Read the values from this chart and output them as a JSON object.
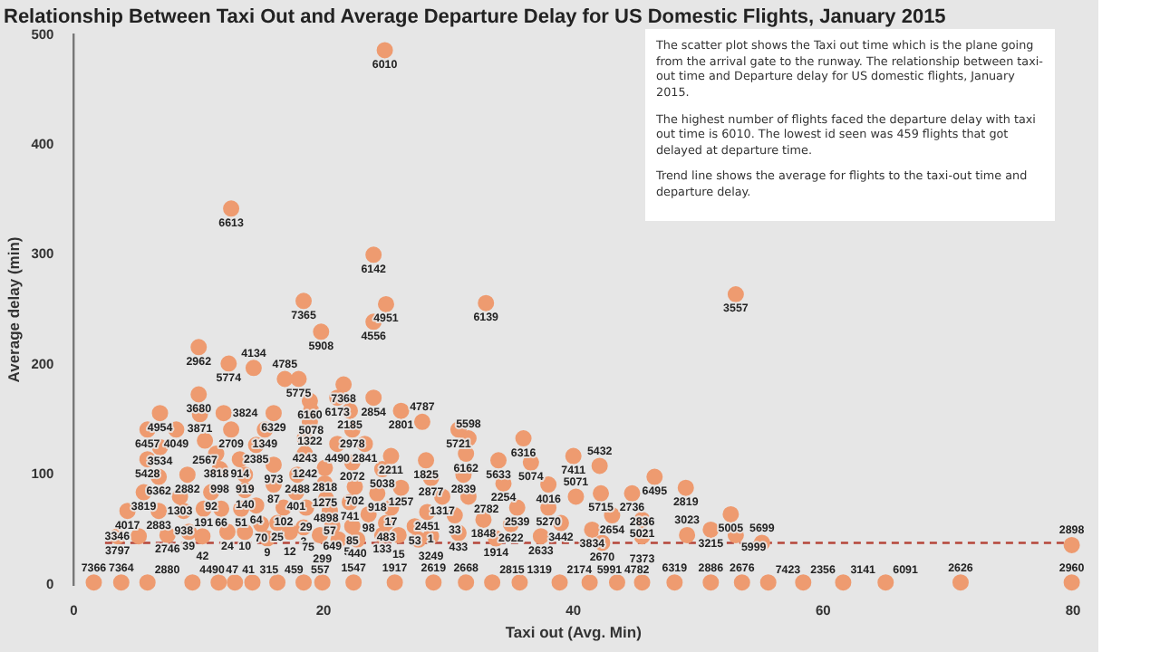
{
  "chart_data": {
    "type": "scatter",
    "title": "Relationship Between Taxi Out and Average Departure Delay for US Domestic Flights, January 2015",
    "xlabel": "Taxi out (Avg. Min)",
    "ylabel": "Average delay (min)",
    "xlim": [
      0,
      80
    ],
    "xticks": [
      0,
      20,
      40,
      60,
      80
    ],
    "ylim": [
      0,
      500
    ],
    "yticks": [
      0,
      100,
      200,
      300,
      400,
      500
    ],
    "annotations": [
      "The scatter plot shows the Taxi out time which is the plane going from the arrival gate to the runway. The relationship between taxi-out time and Departure delay for US domestic flights, January 2015.",
      "The highest number of flights faced the departure delay with taxi out time is 6010. The lowest id seen was 459 flights that got delayed at departure time.",
      "Trend line shows the average for flights to the taxi-out time and departure delay.",
      {
        "text": "6010",
        "x": 24.9,
        "y": 486
      },
      {
        "text": "6613",
        "x": 12.6,
        "y": 342
      },
      {
        "text": "6142",
        "x": 24.0,
        "y": 300
      },
      {
        "text": "7365",
        "x": 18.4,
        "y": 258
      },
      {
        "text": "4951",
        "x": 25.0,
        "y": 255
      },
      {
        "text": "4556",
        "x": 24.0,
        "y": 239
      },
      {
        "text": "5908",
        "x": 19.8,
        "y": 230
      },
      {
        "text": "6139",
        "x": 33.0,
        "y": 256
      },
      {
        "text": "3557",
        "x": 53.0,
        "y": 264
      },
      {
        "text": "2962",
        "x": 10.0,
        "y": 216
      },
      {
        "text": "5774",
        "x": 12.4,
        "y": 201
      },
      {
        "text": "4134",
        "x": 14.4,
        "y": 197
      },
      {
        "text": "5775",
        "x": 18.0,
        "y": 187
      },
      {
        "text": "4785",
        "x": 16.9,
        "y": 187
      },
      {
        "text": "7368",
        "x": 21.6,
        "y": 182
      },
      {
        "text": "6160",
        "x": 18.9,
        "y": 167
      },
      {
        "text": "6173",
        "x": 21.1,
        "y": 170
      },
      {
        "text": "3680",
        "x": 10.0,
        "y": 173
      },
      {
        "text": "5078",
        "x": 19.0,
        "y": 158
      },
      {
        "text": "2854",
        "x": 24.0,
        "y": 170
      },
      {
        "text": "5721",
        "x": 30.8,
        "y": 141
      },
      {
        "text": "4954",
        "x": 6.9,
        "y": 156
      },
      {
        "text": "3871",
        "x": 10.1,
        "y": 155
      },
      {
        "text": "3824",
        "x": 12.0,
        "y": 156
      },
      {
        "text": "6329",
        "x": 16.0,
        "y": 156
      },
      {
        "text": "2185",
        "x": 22.1,
        "y": 158
      },
      {
        "text": "6457",
        "x": 5.9,
        "y": 141
      },
      {
        "text": "4049",
        "x": 8.2,
        "y": 141
      },
      {
        "text": "2709",
        "x": 12.6,
        "y": 141
      },
      {
        "text": "1349",
        "x": 15.3,
        "y": 141
      },
      {
        "text": "1322",
        "x": 18.9,
        "y": 148
      },
      {
        "text": "2978",
        "x": 22.3,
        "y": 141
      },
      {
        "text": "2801",
        "x": 26.2,
        "y": 158
      },
      {
        "text": "4787",
        "x": 27.9,
        "y": 148
      },
      {
        "text": "5598",
        "x": 31.6,
        "y": 133
      },
      {
        "text": "6316",
        "x": 36.0,
        "y": 133
      },
      {
        "text": "3534",
        "x": 6.9,
        "y": 125
      },
      {
        "text": "2567",
        "x": 10.5,
        "y": 131
      },
      {
        "text": "2385",
        "x": 14.6,
        "y": 127
      },
      {
        "text": "4243",
        "x": 18.5,
        "y": 133
      },
      {
        "text": "4490",
        "x": 21.1,
        "y": 128
      },
      {
        "text": "2841",
        "x": 23.3,
        "y": 128
      },
      {
        "text": "3818",
        "x": 11.4,
        "y": 119
      },
      {
        "text": "1242",
        "x": 18.5,
        "y": 119
      },
      {
        "text": "6162",
        "x": 31.4,
        "y": 119
      },
      {
        "text": "7411",
        "x": 40.0,
        "y": 117
      },
      {
        "text": "2211",
        "x": 25.4,
        "y": 117
      },
      {
        "text": "5428",
        "x": 5.9,
        "y": 114
      },
      {
        "text": "914",
        "x": 13.3,
        "y": 114
      },
      {
        "text": "1825",
        "x": 28.2,
        "y": 113
      },
      {
        "text": "5633",
        "x": 34.0,
        "y": 113
      },
      {
        "text": "5074",
        "x": 36.6,
        "y": 111
      },
      {
        "text": "2072",
        "x": 22.3,
        "y": 111
      },
      {
        "text": "973",
        "x": 16.0,
        "y": 109
      },
      {
        "text": "5432",
        "x": 42.1,
        "y": 108
      },
      {
        "text": "2818",
        "x": 20.1,
        "y": 106
      },
      {
        "text": "998",
        "x": 11.7,
        "y": 105
      },
      {
        "text": "5038",
        "x": 24.7,
        "y": 105
      },
      {
        "text": "919",
        "x": 13.7,
        "y": 100
      },
      {
        "text": "2488",
        "x": 17.9,
        "y": 100
      },
      {
        "text": "2882",
        "x": 9.1,
        "y": 100
      },
      {
        "text": "2839",
        "x": 31.2,
        "y": 100
      },
      {
        "text": "6362",
        "x": 6.8,
        "y": 98
      },
      {
        "text": "6495",
        "x": 46.5,
        "y": 98
      },
      {
        "text": "2877",
        "x": 28.6,
        "y": 97
      },
      {
        "text": "1275",
        "x": 20.1,
        "y": 92
      },
      {
        "text": "2254",
        "x": 34.4,
        "y": 92
      },
      {
        "text": "87",
        "x": 16.0,
        "y": 91
      },
      {
        "text": "4016",
        "x": 38.0,
        "y": 91
      },
      {
        "text": "702",
        "x": 22.5,
        "y": 89
      },
      {
        "text": "1257",
        "x": 26.2,
        "y": 88
      },
      {
        "text": "2819",
        "x": 49.0,
        "y": 88
      },
      {
        "text": "140",
        "x": 13.7,
        "y": 86
      },
      {
        "text": "92",
        "x": 11.0,
        "y": 84
      },
      {
        "text": "401",
        "x": 17.8,
        "y": 84
      },
      {
        "text": "3819",
        "x": 5.6,
        "y": 84
      },
      {
        "text": "918",
        "x": 24.3,
        "y": 83
      },
      {
        "text": "5715",
        "x": 42.2,
        "y": 83
      },
      {
        "text": "2736",
        "x": 44.7,
        "y": 83
      },
      {
        "text": "1303",
        "x": 8.5,
        "y": 80
      },
      {
        "text": "1317",
        "x": 29.5,
        "y": 80
      },
      {
        "text": "2782",
        "x": 31.6,
        "y": 80
      },
      {
        "text": "5071",
        "x": 40.2,
        "y": 80
      },
      {
        "text": "4898",
        "x": 20.2,
        "y": 78
      },
      {
        "text": "741",
        "x": 22.1,
        "y": 75
      },
      {
        "text": "64",
        "x": 14.6,
        "y": 72
      },
      {
        "text": "102",
        "x": 16.8,
        "y": 70
      },
      {
        "text": "29",
        "x": 18.6,
        "y": 70
      },
      {
        "text": "17",
        "x": 25.4,
        "y": 70
      },
      {
        "text": "2539",
        "x": 35.5,
        "y": 70
      },
      {
        "text": "5270",
        "x": 38.0,
        "y": 70
      },
      {
        "text": "191",
        "x": 10.4,
        "y": 69
      },
      {
        "text": "66",
        "x": 11.8,
        "y": 69
      },
      {
        "text": "51",
        "x": 13.4,
        "y": 69
      },
      {
        "text": "4017",
        "x": 4.3,
        "y": 67
      },
      {
        "text": "2883",
        "x": 6.8,
        "y": 67
      },
      {
        "text": "938",
        "x": 8.8,
        "y": 67
      },
      {
        "text": "57",
        "x": 20.5,
        "y": 67
      },
      {
        "text": "2451",
        "x": 28.3,
        "y": 66
      },
      {
        "text": "98",
        "x": 23.6,
        "y": 64
      },
      {
        "text": "5005",
        "x": 52.6,
        "y": 64
      },
      {
        "text": "33",
        "x": 30.5,
        "y": 63
      },
      {
        "text": "2654",
        "x": 43.1,
        "y": 63
      },
      {
        "text": "1848",
        "x": 32.8,
        "y": 59
      },
      {
        "text": "5021",
        "x": 45.5,
        "y": 59
      },
      {
        "text": "483",
        "x": 25.0,
        "y": 56
      },
      {
        "text": "25",
        "x": 16.3,
        "y": 56
      },
      {
        "text": "3442",
        "x": 39.0,
        "y": 56
      },
      {
        "text": "70",
        "x": 15.0,
        "y": 55
      },
      {
        "text": "2622",
        "x": 35.0,
        "y": 55
      },
      {
        "text": "649",
        "x": 20.7,
        "y": 53
      },
      {
        "text": "85",
        "x": 22.3,
        "y": 53
      },
      {
        "text": "53",
        "x": 27.3,
        "y": 53
      },
      {
        "text": "3",
        "x": 18.4,
        "y": 52
      },
      {
        "text": "3834",
        "x": 41.5,
        "y": 50
      },
      {
        "text": "3215",
        "x": 51.0,
        "y": 50
      },
      {
        "text": "39",
        "x": 9.2,
        "y": 48
      },
      {
        "text": "24",
        "x": 12.3,
        "y": 48
      },
      {
        "text": "10",
        "x": 13.7,
        "y": 48
      },
      {
        "text": "12",
        "x": 17.3,
        "y": 48
      },
      {
        "text": "433",
        "x": 30.8,
        "y": 47
      },
      {
        "text": "2746",
        "x": 7.5,
        "y": 45
      },
      {
        "text": "75",
        "x": 19.7,
        "y": 45
      },
      {
        "text": "133",
        "x": 24.7,
        "y": 45
      },
      {
        "text": "15",
        "x": 26.0,
        "y": 45
      },
      {
        "text": "3023",
        "x": 49.1,
        "y": 45
      },
      {
        "text": "5999",
        "x": 53.0,
        "y": 45
      },
      {
        "text": "3797",
        "x": 3.5,
        "y": 44
      },
      {
        "text": "3346",
        "x": 5.2,
        "y": 44
      },
      {
        "text": "42",
        "x": 10.3,
        "y": 44
      },
      {
        "text": "3249",
        "x": 28.6,
        "y": 44
      },
      {
        "text": "2633",
        "x": 37.4,
        "y": 44
      },
      {
        "text": "2836",
        "x": 45.5,
        "y": 44
      },
      {
        "text": "9",
        "x": 15.5,
        "y": 42
      },
      {
        "text": "1914",
        "x": 33.8,
        "y": 42
      },
      {
        "text": "5",
        "x": 21.2,
        "y": 41
      },
      {
        "text": "440",
        "x": 22.7,
        "y": 41
      },
      {
        "text": "1",
        "x": 27.6,
        "y": 41
      },
      {
        "text": "2670",
        "x": 42.3,
        "y": 38
      },
      {
        "text": "5699",
        "x": 55.1,
        "y": 38
      },
      {
        "text": "2898",
        "x": 79.9,
        "y": 36
      },
      {
        "text": "7366",
        "x": 1.6,
        "y": 2
      },
      {
        "text": "7364",
        "x": 3.8,
        "y": 2
      },
      {
        "text": "2880",
        "x": 5.9,
        "y": 2
      },
      {
        "text": "4490",
        "x": 9.5,
        "y": 2
      },
      {
        "text": "47",
        "x": 11.6,
        "y": 2
      },
      {
        "text": "41",
        "x": 12.9,
        "y": 2
      },
      {
        "text": "315",
        "x": 14.3,
        "y": 2
      },
      {
        "text": "459",
        "x": 16.3,
        "y": 2
      },
      {
        "text": "557",
        "x": 18.4,
        "y": 2
      },
      {
        "text": "299",
        "x": 19.9,
        "y": 2
      },
      {
        "text": "1547",
        "x": 22.4,
        "y": 2
      },
      {
        "text": "1917",
        "x": 25.7,
        "y": 2
      },
      {
        "text": "2619",
        "x": 28.8,
        "y": 2
      },
      {
        "text": "2668",
        "x": 31.4,
        "y": 2
      },
      {
        "text": "2815",
        "x": 33.5,
        "y": 2
      },
      {
        "text": "1319",
        "x": 35.7,
        "y": 2
      },
      {
        "text": "2174",
        "x": 38.9,
        "y": 2
      },
      {
        "text": "5991",
        "x": 41.3,
        "y": 2
      },
      {
        "text": "4782",
        "x": 43.5,
        "y": 2
      },
      {
        "text": "7373",
        "x": 45.5,
        "y": 2
      },
      {
        "text": "6319",
        "x": 48.1,
        "y": 2
      },
      {
        "text": "2886",
        "x": 51.0,
        "y": 2
      },
      {
        "text": "2676",
        "x": 53.5,
        "y": 2
      },
      {
        "text": "7423",
        "x": 55.6,
        "y": 2
      },
      {
        "text": "2356",
        "x": 58.4,
        "y": 2
      },
      {
        "text": "3141",
        "x": 61.6,
        "y": 2
      },
      {
        "text": "6091",
        "x": 65.0,
        "y": 2
      },
      {
        "text": "2626",
        "x": 71.0,
        "y": 2
      },
      {
        "text": "2960",
        "x": 79.9,
        "y": 2
      }
    ],
    "series": [
      {
        "type": "scatter",
        "color": "#ee9b70",
        "marker": "circle",
        "x": [
          24.9,
          12.6,
          24.0,
          18.4,
          25.0,
          24.0,
          19.8,
          33.0,
          53.0,
          10.0,
          12.4,
          14.4,
          18.0,
          16.9,
          21.6,
          18.9,
          21.1,
          10.0,
          19.0,
          24.0,
          30.8,
          6.9,
          10.1,
          12.0,
          16.0,
          22.1,
          5.9,
          8.2,
          12.6,
          15.3,
          18.9,
          22.3,
          26.2,
          27.9,
          31.6,
          36.0,
          6.9,
          10.5,
          14.6,
          18.5,
          21.1,
          23.3,
          11.4,
          18.5,
          31.4,
          40.0,
          25.4,
          5.9,
          13.3,
          28.2,
          34.0,
          36.6,
          22.3,
          16.0,
          42.1,
          20.1,
          11.7,
          24.7,
          13.7,
          17.9,
          9.1,
          31.2,
          6.8,
          46.5,
          28.6,
          20.1,
          34.4,
          16.0,
          38.0,
          22.5,
          26.2,
          49.0,
          13.7,
          11.0,
          17.8,
          5.6,
          24.3,
          42.2,
          44.7,
          8.5,
          29.5,
          31.6,
          40.2,
          20.2,
          22.1,
          14.6,
          16.8,
          18.6,
          25.4,
          35.5,
          38.0,
          10.4,
          11.8,
          13.4,
          4.3,
          6.8,
          8.8,
          20.5,
          28.3,
          23.6,
          52.6,
          30.5,
          43.1,
          32.8,
          45.5,
          25.0,
          16.3,
          39.0,
          15.0,
          35.0,
          20.7,
          22.3,
          27.3,
          18.4,
          41.5,
          51.0,
          9.2,
          12.3,
          13.7,
          17.3,
          30.8,
          7.5,
          19.7,
          24.7,
          26.0,
          49.1,
          53.0,
          3.5,
          5.2,
          10.3,
          28.6,
          37.4,
          45.5,
          15.5,
          33.8,
          21.2,
          22.7,
          27.6,
          42.3,
          55.1,
          79.9,
          1.6,
          3.8,
          5.9,
          9.5,
          11.6,
          12.9,
          14.3,
          16.3,
          18.4,
          19.9,
          22.4,
          25.7,
          28.8,
          31.4,
          33.5,
          35.7,
          38.9,
          41.3,
          43.5,
          45.5,
          48.1,
          51.0,
          53.5,
          55.6,
          58.4,
          61.6,
          65.0,
          71.0,
          79.9
        ],
        "values": [
          486,
          342,
          300,
          258,
          255,
          239,
          230,
          256,
          264,
          216,
          201,
          197,
          187,
          187,
          182,
          167,
          170,
          173,
          158,
          170,
          141,
          156,
          155,
          156,
          156,
          158,
          141,
          141,
          141,
          141,
          148,
          141,
          158,
          148,
          133,
          133,
          125,
          131,
          127,
          133,
          128,
          128,
          119,
          119,
          119,
          117,
          117,
          114,
          114,
          113,
          113,
          111,
          111,
          109,
          108,
          106,
          105,
          105,
          100,
          100,
          100,
          100,
          98,
          98,
          97,
          92,
          92,
          91,
          91,
          89,
          88,
          88,
          86,
          84,
          84,
          84,
          83,
          83,
          83,
          80,
          80,
          80,
          80,
          78,
          75,
          72,
          70,
          70,
          70,
          70,
          70,
          69,
          69,
          69,
          67,
          67,
          67,
          67,
          66,
          64,
          64,
          63,
          63,
          59,
          59,
          56,
          56,
          56,
          55,
          55,
          53,
          53,
          53,
          52,
          50,
          50,
          48,
          48,
          48,
          48,
          47,
          45,
          45,
          45,
          45,
          45,
          45,
          44,
          44,
          44,
          44,
          44,
          44,
          42,
          42,
          41,
          41,
          41,
          38,
          38,
          36,
          2,
          2,
          2,
          2,
          2,
          2,
          2,
          2,
          2,
          2,
          2,
          2,
          2,
          2,
          2,
          2,
          2,
          2,
          2,
          2,
          2,
          2,
          2,
          2,
          2,
          2,
          2,
          2,
          2
        ]
      },
      {
        "type": "line",
        "color": "#b5453a",
        "line_style": "dashed",
        "x": [
          2.5,
          80
        ],
        "values": [
          38,
          38
        ]
      }
    ]
  }
}
